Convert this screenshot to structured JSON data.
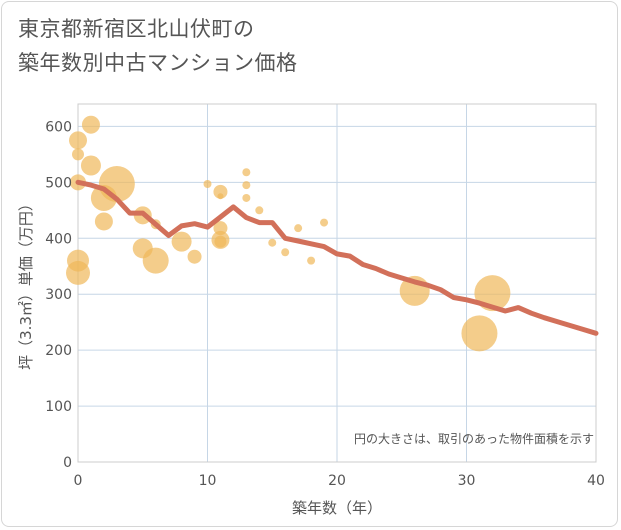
{
  "title_lines": [
    "東京都新宿区北山伏町の",
    "築年数別中古マンション価格"
  ],
  "chart_data": {
    "type": "scatter",
    "title": "東京都新宿区北山伏町の築年数別中古マンション価格",
    "xlabel": "築年数（年）",
    "ylabel": "坪（3.3㎡）単価（万円）",
    "xlim": [
      0,
      40
    ],
    "ylim": [
      0,
      640
    ],
    "x_ticks": [
      0,
      10,
      20,
      30,
      40
    ],
    "y_ticks": [
      0,
      100,
      200,
      300,
      400,
      500,
      600
    ],
    "grid": true,
    "note": "円の大きさは、取引のあった物件面積を示す",
    "bubble_color": "#f0b85a",
    "line_color": "#d2705a",
    "bubbles": [
      {
        "x": 0,
        "y": 575,
        "size": 9
      },
      {
        "x": 0,
        "y": 550,
        "size": 6
      },
      {
        "x": 0,
        "y": 500,
        "size": 8
      },
      {
        "x": 0,
        "y": 360,
        "size": 11
      },
      {
        "x": 0,
        "y": 338,
        "size": 12
      },
      {
        "x": 1,
        "y": 603,
        "size": 9
      },
      {
        "x": 1,
        "y": 530,
        "size": 10
      },
      {
        "x": 2,
        "y": 472,
        "size": 13
      },
      {
        "x": 2,
        "y": 430,
        "size": 9
      },
      {
        "x": 3,
        "y": 497,
        "size": 18
      },
      {
        "x": 5,
        "y": 441,
        "size": 9
      },
      {
        "x": 5,
        "y": 382,
        "size": 10
      },
      {
        "x": 6,
        "y": 360,
        "size": 13
      },
      {
        "x": 6,
        "y": 425,
        "size": 5
      },
      {
        "x": 8,
        "y": 394,
        "size": 10
      },
      {
        "x": 9,
        "y": 367,
        "size": 7
      },
      {
        "x": 10,
        "y": 497,
        "size": 4
      },
      {
        "x": 11,
        "y": 483,
        "size": 7
      },
      {
        "x": 11,
        "y": 475,
        "size": 3
      },
      {
        "x": 11,
        "y": 418,
        "size": 7
      },
      {
        "x": 11,
        "y": 397,
        "size": 9
      },
      {
        "x": 11,
        "y": 394,
        "size": 6
      },
      {
        "x": 13,
        "y": 518,
        "size": 4
      },
      {
        "x": 13,
        "y": 495,
        "size": 4
      },
      {
        "x": 13,
        "y": 472,
        "size": 4
      },
      {
        "x": 14,
        "y": 450,
        "size": 4
      },
      {
        "x": 15,
        "y": 392,
        "size": 4
      },
      {
        "x": 16,
        "y": 375,
        "size": 4
      },
      {
        "x": 17,
        "y": 418,
        "size": 4
      },
      {
        "x": 18,
        "y": 360,
        "size": 4
      },
      {
        "x": 19,
        "y": 428,
        "size": 4
      },
      {
        "x": 26,
        "y": 306,
        "size": 15
      },
      {
        "x": 31,
        "y": 230,
        "size": 18
      },
      {
        "x": 32,
        "y": 302,
        "size": 18
      }
    ],
    "trend": {
      "x": [
        0,
        1,
        2,
        3,
        4,
        5,
        6,
        7,
        8,
        9,
        10,
        11,
        12,
        13,
        14,
        15,
        16,
        17,
        18,
        19,
        20,
        21,
        22,
        23,
        24,
        25,
        26,
        27,
        28,
        29,
        30,
        31,
        32,
        33,
        34,
        35,
        36,
        37,
        38,
        39,
        40
      ],
      "y": [
        500,
        495,
        488,
        470,
        445,
        445,
        425,
        405,
        422,
        426,
        420,
        438,
        456,
        437,
        428,
        428,
        400,
        395,
        390,
        385,
        372,
        368,
        353,
        346,
        336,
        329,
        322,
        316,
        308,
        294,
        290,
        284,
        277,
        270,
        276,
        266,
        258,
        251,
        244,
        237,
        230
      ]
    }
  }
}
